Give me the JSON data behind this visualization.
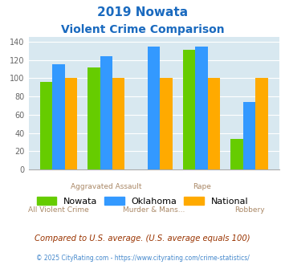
{
  "title_line1": "2019 Nowata",
  "title_line2": "Violent Crime Comparison",
  "nowata": [
    96,
    112,
    0,
    131,
    34
  ],
  "oklahoma": [
    115,
    124,
    135,
    135,
    74
  ],
  "national": [
    100,
    100,
    100,
    100,
    100
  ],
  "nowata_color": "#66cc00",
  "oklahoma_color": "#3399ff",
  "national_color": "#ffaa00",
  "bg_color": "#d8e8f0",
  "title_color": "#1a6abf",
  "ylim": [
    0,
    145
  ],
  "yticks": [
    0,
    20,
    40,
    60,
    80,
    100,
    120,
    140
  ],
  "footnote": "Compared to U.S. average. (U.S. average equals 100)",
  "copyright": "© 2025 CityRating.com - https://www.cityrating.com/crime-statistics/",
  "legend_labels": [
    "Nowata",
    "Oklahoma",
    "National"
  ],
  "label_color": "#aa8866",
  "copyright_color": "#4488cc"
}
